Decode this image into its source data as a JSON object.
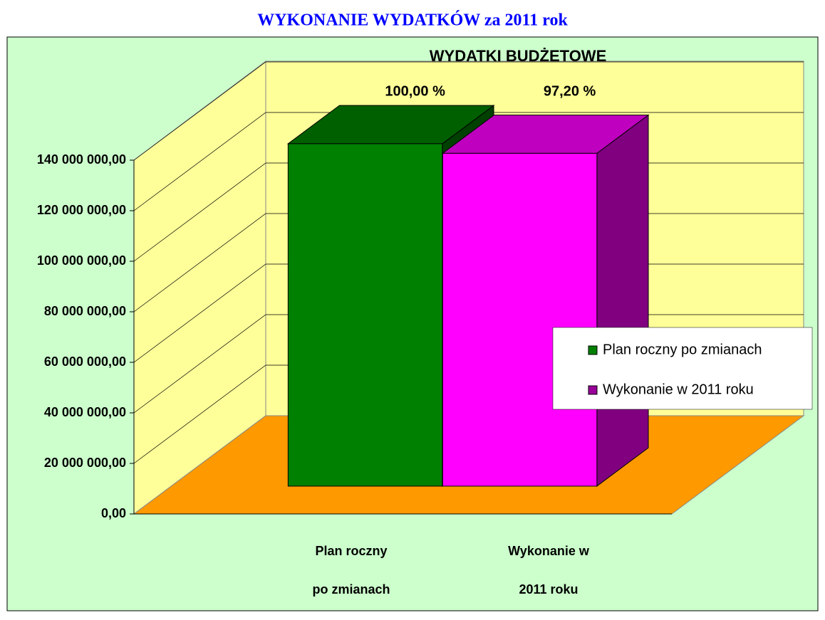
{
  "page_title": "WYKONANIE WYDATKÓW za 2011 rok",
  "chart_data": {
    "type": "bar3d",
    "title": "WYDATKI BUDŻETOWE",
    "series": [
      {
        "name": "Plan roczny po zmianach",
        "color": "#008000",
        "values": [
          135500000
        ]
      },
      {
        "name": "Wykonanie w  2011 roku",
        "color": "#ff00ff",
        "values": [
          131700000
        ]
      }
    ],
    "percent_labels": [
      {
        "value": 100,
        "label": "100,00 %"
      },
      {
        "value": 97.2,
        "label": "97,20 %"
      }
    ],
    "x_labels": [
      [
        "Plan roczny",
        "po zmianach"
      ],
      [
        "Wykonanie w",
        "2011 roku"
      ]
    ],
    "ylim": [
      0,
      140000000
    ],
    "yticks": [
      {
        "value": 0,
        "label": "0,00"
      },
      {
        "value": 20000000,
        "label": "20 000 000,00"
      },
      {
        "value": 40000000,
        "label": "40 000 000,00"
      },
      {
        "value": 60000000,
        "label": "60 000 000,00"
      },
      {
        "value": 80000000,
        "label": "80 000 000,00"
      },
      {
        "value": 100000000,
        "label": "100 000 000,00"
      },
      {
        "value": 120000000,
        "label": "120 000 000,00"
      },
      {
        "value": 140000000,
        "label": "140 000 000,00"
      }
    ],
    "grid": true,
    "legend": "right"
  }
}
